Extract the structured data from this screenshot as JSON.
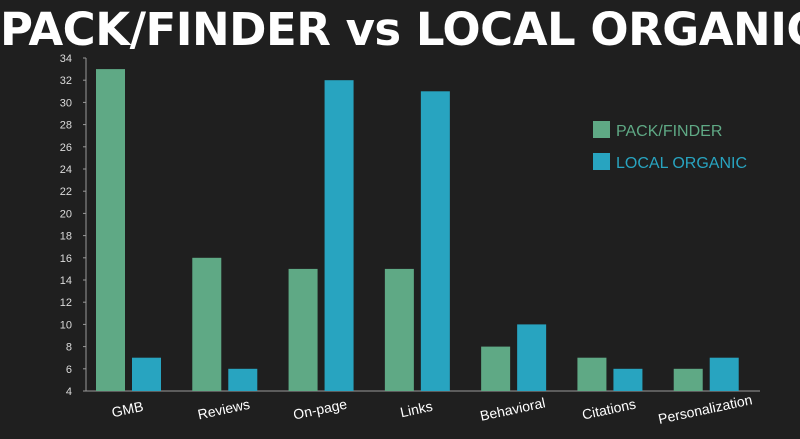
{
  "chart_data": {
    "type": "bar",
    "title": "PACK/FINDER vs LOCAL ORGANIC",
    "xlabel": "",
    "ylabel": "",
    "ylim": [
      4,
      34
    ],
    "yticks": [
      4,
      6,
      8,
      10,
      12,
      14,
      16,
      18,
      20,
      22,
      24,
      26,
      28,
      30,
      32,
      34
    ],
    "grid": false,
    "legend_position": "top-right",
    "categories": [
      "GMB",
      "Reviews",
      "On-page",
      "Links",
      "Behavioral",
      "Citations",
      "Personalization"
    ],
    "series": [
      {
        "name": "PACK/FINDER",
        "color": "#5fa985",
        "values": [
          33,
          16,
          15,
          15,
          8,
          7,
          6
        ]
      },
      {
        "name": "LOCAL ORGANIC",
        "color": "#28a4c0",
        "values": [
          7,
          6,
          32,
          31,
          10,
          6,
          7
        ]
      }
    ]
  },
  "colors": {
    "background": "#1f1f1f",
    "axis": "#9a9a9a"
  }
}
